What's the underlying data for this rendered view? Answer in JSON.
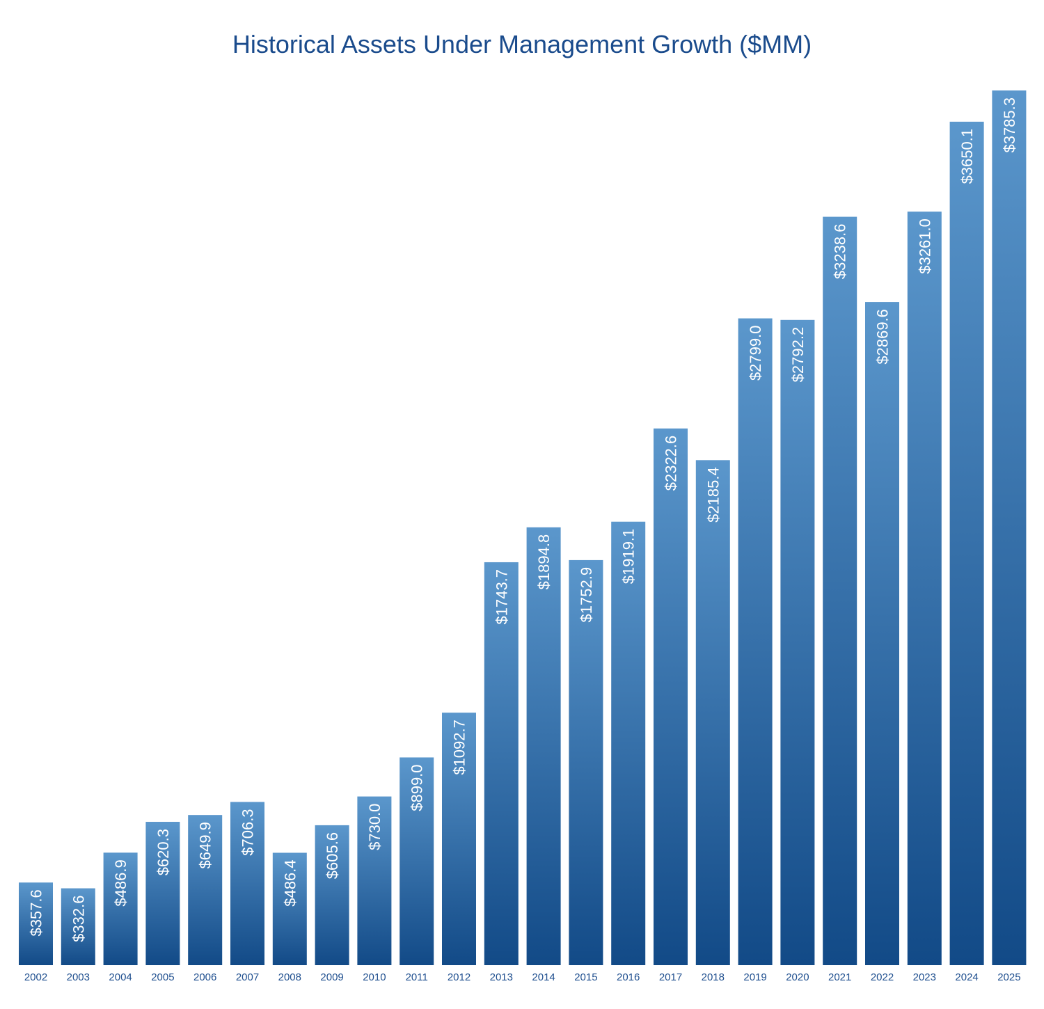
{
  "chart_data": {
    "type": "bar",
    "title": "Historical Assets Under Management Growth ($MM)",
    "xlabel": "",
    "ylabel": "",
    "ylim": [
      0,
      3785.3
    ],
    "grid": false,
    "legend": "none",
    "value_prefix": "$",
    "categories": [
      "2002",
      "2003",
      "2004",
      "2005",
      "2006",
      "2007",
      "2008",
      "2009",
      "2010",
      "2011",
      "2012",
      "2013",
      "2014",
      "2015",
      "2016",
      "2017",
      "2018",
      "2019",
      "2020",
      "2021",
      "2022",
      "2023",
      "2024",
      "2025"
    ],
    "values": [
      357.6,
      332.6,
      486.9,
      620.3,
      649.9,
      706.3,
      486.4,
      605.6,
      730.0,
      899.0,
      1092.7,
      1743.7,
      1894.8,
      1752.9,
      1919.1,
      2322.6,
      2185.4,
      2799.0,
      2792.2,
      3238.6,
      2869.6,
      3261.0,
      3650.1,
      3785.3
    ],
    "colors": {
      "bar_top": "#5b97cc",
      "bar_bottom": "#124a87",
      "title": "#1a4b8c",
      "axis_text": "#1f4f8f"
    }
  }
}
